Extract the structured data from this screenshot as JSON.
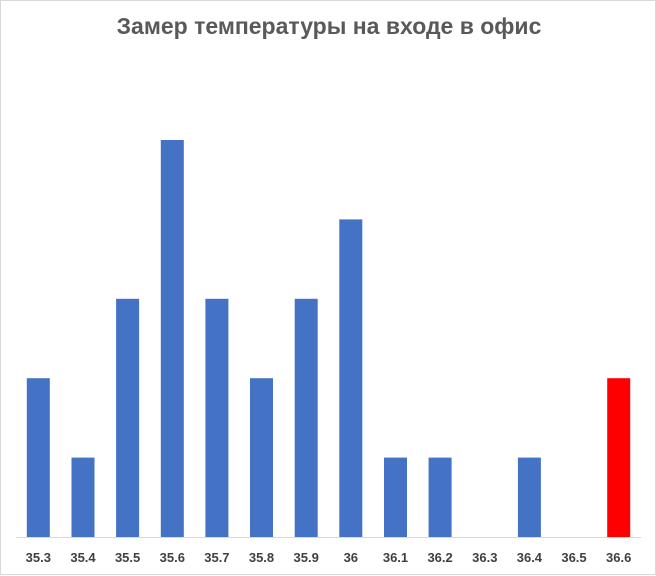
{
  "chart_data": {
    "type": "bar",
    "title": "Замер температуры на входе в офис",
    "xlabel": "",
    "ylabel": "",
    "categories": [
      "35.3",
      "35.4",
      "35.5",
      "35.6",
      "35.7",
      "35.8",
      "35.9",
      "36",
      "36.1",
      "36.2",
      "36.3",
      "36.4",
      "36.5",
      "36.6"
    ],
    "values": [
      2,
      1,
      3,
      5,
      3,
      2,
      3,
      4,
      1,
      1,
      0,
      1,
      0,
      2
    ],
    "ylim": [
      0,
      5
    ],
    "grid": false,
    "legend": "none",
    "colors": {
      "bar": "#4472c4",
      "highlight": "#ff0000",
      "highlight_category": "36.6",
      "title": "#595959",
      "axis": "#d9d9d9",
      "tick_text": "#404040"
    }
  }
}
